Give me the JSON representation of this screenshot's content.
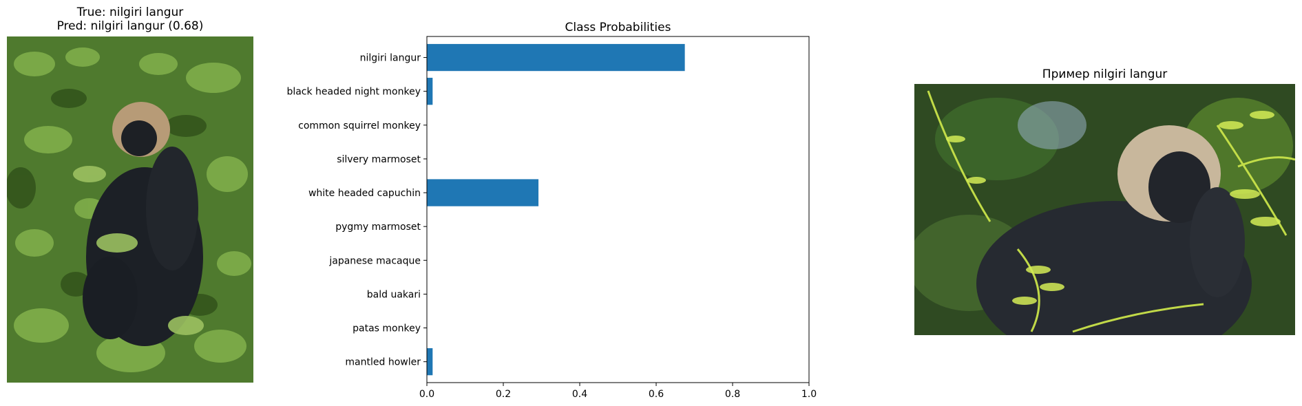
{
  "left_panel": {
    "title_line1": "True: nilgiri langur",
    "title_line2": "Pred: nilgiri langur (0.68)"
  },
  "right_panel": {
    "title": "Пример nilgiri langur"
  },
  "chart_data": {
    "type": "bar",
    "orientation": "horizontal",
    "title": "Class Probabilities",
    "xlabel": "",
    "ylabel": "",
    "xlim": [
      0.0,
      1.0
    ],
    "xticks": [
      "0.0",
      "0.2",
      "0.4",
      "0.6",
      "0.8",
      "1.0"
    ],
    "categories": [
      "nilgiri langur",
      "black headed night monkey",
      "common squirrel monkey",
      "silvery marmoset",
      "white headed capuchin",
      "pygmy marmoset",
      "japanese macaque",
      "bald uakari",
      "patas monkey",
      "mantled howler"
    ],
    "values": [
      0.675,
      0.015,
      0.0,
      0.0,
      0.292,
      0.0,
      0.0,
      0.0,
      0.0,
      0.015
    ],
    "bar_color": "#1f77b4",
    "grid": false,
    "legend": "none"
  }
}
